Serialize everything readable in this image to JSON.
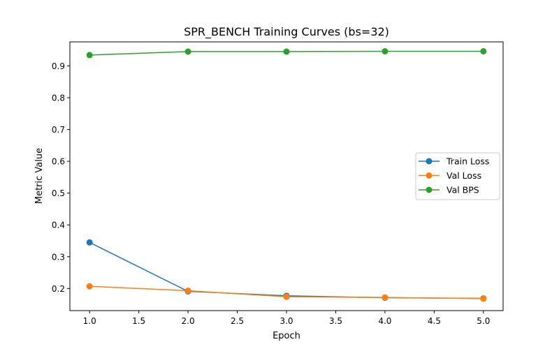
{
  "chart_data": {
    "type": "line",
    "title": "SPR_BENCH Training Curves (bs=32)",
    "xlabel": "Epoch",
    "ylabel": "Metric Value",
    "xlim": [
      0.8,
      5.2
    ],
    "ylim": [
      0.1305,
      0.9755
    ],
    "x": [
      1,
      2,
      3,
      4,
      5
    ],
    "x_ticks": [
      1.0,
      1.5,
      2.0,
      2.5,
      3.0,
      3.5,
      4.0,
      4.5,
      5.0
    ],
    "x_tick_labels": [
      "1.0",
      "1.5",
      "2.0",
      "2.5",
      "3.0",
      "3.5",
      "4.0",
      "4.5",
      "5.0"
    ],
    "y_ticks": [
      0.2,
      0.3,
      0.4,
      0.5,
      0.6,
      0.7,
      0.8,
      0.9
    ],
    "y_tick_labels": [
      "0.2",
      "0.3",
      "0.4",
      "0.5",
      "0.6",
      "0.7",
      "0.8",
      "0.9"
    ],
    "grid": false,
    "legend_position": "center-right",
    "series": [
      {
        "name": "Train Loss",
        "color": "#1f77b4",
        "marker": "circle",
        "values": [
          0.345,
          0.191,
          0.177,
          0.171,
          0.169
        ]
      },
      {
        "name": "Val Loss",
        "color": "#ff7f0e",
        "marker": "circle",
        "values": [
          0.207,
          0.193,
          0.174,
          0.172,
          0.168
        ]
      },
      {
        "name": "Val BPS",
        "color": "#2ca02c",
        "marker": "circle",
        "values": [
          0.934,
          0.945,
          0.945,
          0.946,
          0.946
        ]
      }
    ]
  }
}
